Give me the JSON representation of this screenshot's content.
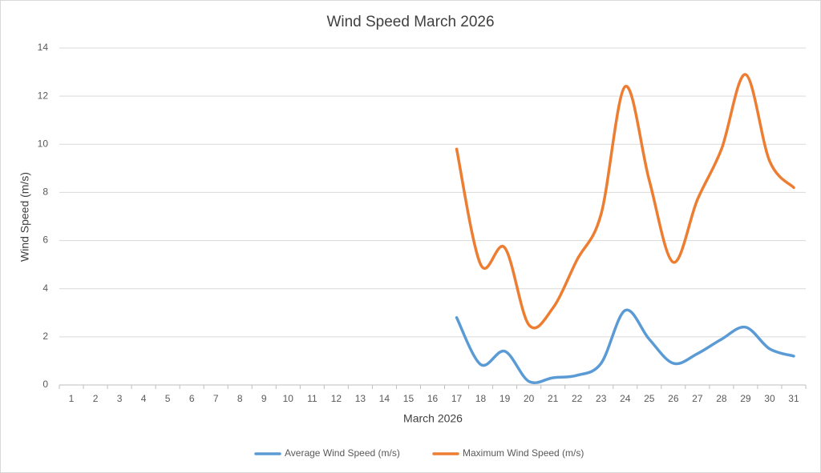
{
  "chart_data": {
    "type": "line",
    "title": "Wind Speed March 2026",
    "x_label": "March 2026",
    "y_label": "Wind Speed (m/s)",
    "categories": [
      "1",
      "2",
      "3",
      "4",
      "5",
      "6",
      "7",
      "8",
      "9",
      "10",
      "11",
      "12",
      "13",
      "14",
      "15",
      "16",
      "17",
      "18",
      "19",
      "20",
      "21",
      "22",
      "23",
      "24",
      "25",
      "26",
      "27",
      "28",
      "29",
      "30",
      "31"
    ],
    "series": [
      {
        "name": "Average Wind Speed (m/s)",
        "color": "#5b9bd5",
        "values": [
          null,
          null,
          null,
          null,
          null,
          null,
          null,
          null,
          null,
          null,
          null,
          null,
          null,
          null,
          null,
          null,
          2.8,
          0.85,
          1.4,
          0.15,
          0.3,
          0.4,
          0.9,
          3.1,
          1.9,
          0.9,
          1.3,
          1.9,
          2.4,
          1.5,
          1.2
        ]
      },
      {
        "name": "Maximum Wind Speed (m/s)",
        "color": "#ed7d31",
        "values": [
          null,
          null,
          null,
          null,
          null,
          null,
          null,
          null,
          null,
          null,
          null,
          null,
          null,
          null,
          null,
          null,
          9.8,
          5.0,
          5.7,
          2.5,
          3.2,
          5.2,
          7.1,
          12.4,
          8.5,
          5.1,
          7.7,
          9.8,
          12.9,
          9.3,
          8.2
        ]
      }
    ],
    "ylim": [
      0,
      14
    ],
    "yticks": [
      0,
      2,
      4,
      6,
      8,
      10,
      12,
      14
    ],
    "grid": true,
    "smooth": true,
    "legend": "bottom"
  }
}
